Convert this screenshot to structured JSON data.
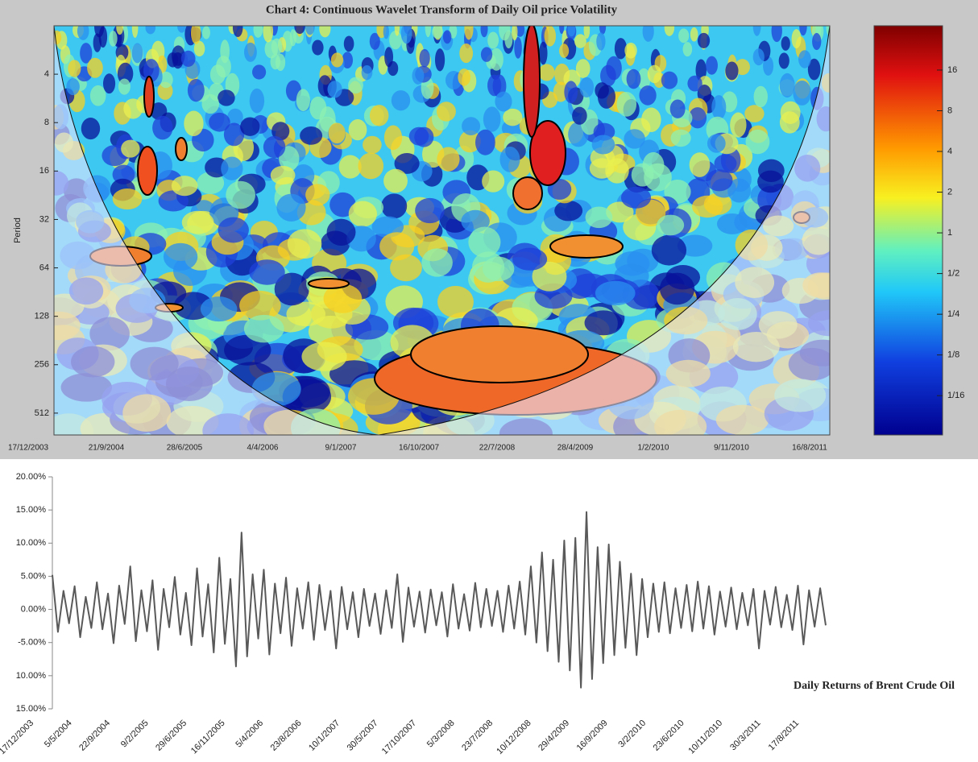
{
  "chart_data": [
    {
      "type": "heatmap",
      "title": "Chart 4: Continuous Wavelet Transform of Daily Oil price Volatility",
      "ylabel": "Period",
      "ylim": [
        2,
        700
      ],
      "log_y": true,
      "yticks": [
        4,
        8,
        16,
        32,
        64,
        128,
        256,
        512
      ],
      "xticks": [
        "17/12/2003",
        "21/9/2004",
        "28/6/2005",
        "4/4/2006",
        "9/1/2007",
        "16/10/2007",
        "22/7/2008",
        "28/4/2009",
        "1/2/2010",
        "9/11/2010",
        "16/8/2011"
      ],
      "clim": [
        0.032,
        34
      ],
      "cticks": [
        16,
        8,
        4,
        2,
        1,
        {
          "value": 0.5,
          "label": "1/2"
        },
        {
          "value": 0.25,
          "label": "1/4"
        },
        {
          "value": 0.125,
          "label": "1/8"
        },
        {
          "value": 0.0625,
          "label": "1/16"
        }
      ]
    },
    {
      "type": "line",
      "annotation": "Daily Returns of Brent Crude Oil",
      "xticks": [
        "17/12/2003",
        "5/5/2004",
        "22/9/2004",
        "9/2/2005",
        "29/6/2005",
        "16/11/2005",
        "5/4/2006",
        "23/8/2006",
        "10/1/2007",
        "30/5/2007",
        "17/10/2007",
        "5/3/2008",
        "23/7/2008",
        "10/12/2008",
        "29/4/2009",
        "16/9/2009",
        "3/2/2010",
        "23/6/2010",
        "10/11/2010",
        "30/3/2011",
        "17/8/2011"
      ],
      "ylim": [
        -15,
        20
      ],
      "yticks": [
        {
          "value": 20,
          "label": "20.00%"
        },
        {
          "value": 15,
          "label": "15.00%"
        },
        {
          "value": 10,
          "label": "10.00%"
        },
        {
          "value": 5,
          "label": "5.00%"
        },
        {
          "value": 0,
          "label": "0.00%"
        },
        {
          "value": -5,
          "label": "-5.00%"
        },
        {
          "value": -10,
          "label": "10.00%"
        },
        {
          "value": -15,
          "label": "15.00%"
        }
      ],
      "color": "#595959",
      "values": [
        5.2,
        -3.4,
        2.8,
        -2.1,
        3.5,
        -4.2,
        1.9,
        -2.8,
        4.1,
        -3.0,
        2.4,
        -5.1,
        3.6,
        -2.2,
        6.5,
        -4.8,
        2.9,
        -3.3,
        4.4,
        -6.1,
        3.1,
        -2.7,
        4.9,
        -3.8,
        2.5,
        -5.4,
        6.2,
        -4.1,
        3.8,
        -6.5,
        7.8,
        -5.2,
        4.6,
        -8.6,
        11.6,
        -7.1,
        5.3,
        -4.4,
        6.0,
        -6.8,
        3.9,
        -3.6,
        4.8,
        -5.5,
        3.2,
        -2.9,
        4.1,
        -4.6,
        3.7,
        -3.1,
        2.8,
        -5.9,
        3.4,
        -3.0,
        2.6,
        -4.2,
        3.1,
        -2.5,
        2.4,
        -3.7,
        2.9,
        -2.8,
        5.3,
        -4.9,
        3.3,
        -2.6,
        2.7,
        -3.5,
        3.0,
        -2.4,
        2.6,
        -4.1,
        3.8,
        -2.9,
        2.3,
        -3.2,
        4.0,
        -2.7,
        3.1,
        -2.5,
        2.8,
        -3.4,
        3.6,
        -2.9,
        4.2,
        -3.8,
        6.5,
        -5.0,
        8.6,
        -6.3,
        7.5,
        -7.9,
        10.4,
        -9.2,
        10.8,
        -11.8,
        14.7,
        -10.5,
        9.4,
        -8.1,
        9.8,
        -6.9,
        7.2,
        -5.8,
        5.4,
        -6.9,
        4.6,
        -4.2,
        3.9,
        -3.4,
        4.1,
        -3.6,
        3.2,
        -2.8,
        3.7,
        -3.3,
        4.2,
        -2.9,
        3.5,
        -3.8,
        2.7,
        -2.6,
        3.3,
        -3.0,
        2.5,
        -2.4,
        3.1,
        -5.9,
        2.8,
        -2.3,
        3.4,
        -2.7,
        2.2,
        -3.1,
        3.6,
        -5.3,
        2.9,
        -2.6,
        3.2,
        -2.4
      ]
    }
  ]
}
